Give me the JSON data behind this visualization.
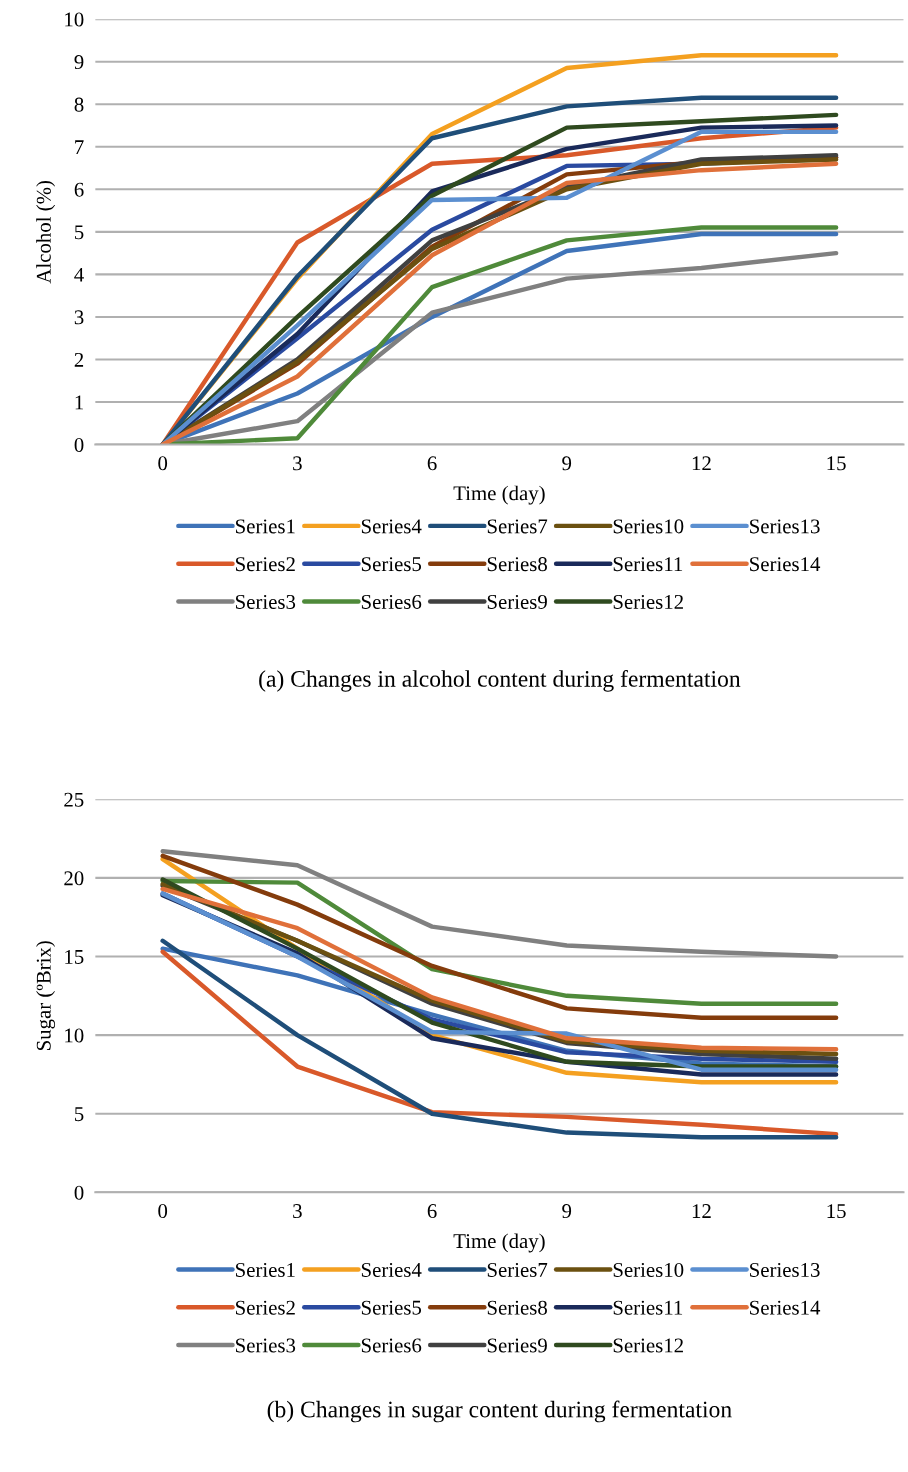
{
  "chart_data": [
    {
      "type": "line",
      "ylabel": "Alcohol (%)",
      "xlabel": "Time (day)",
      "categories": [
        "0",
        "3",
        "6",
        "9",
        "12",
        "15"
      ],
      "ylim": [
        0,
        10
      ],
      "yticks": [
        0,
        1,
        2,
        3,
        4,
        5,
        6,
        7,
        8,
        9,
        10
      ],
      "grid": "y",
      "legend": "bottom",
      "marker": "none",
      "line_style": "solid",
      "annotations": [
        "(a) Changes in alcohol content during fermentation"
      ],
      "series": [
        {
          "name": "Series1",
          "color": "#3f73b8",
          "values": [
            0,
            1.2,
            3.0,
            4.55,
            4.95,
            4.95
          ]
        },
        {
          "name": "Series2",
          "color": "#d9592a",
          "values": [
            0,
            4.75,
            6.6,
            6.8,
            7.2,
            7.45
          ]
        },
        {
          "name": "Series3",
          "color": "#808080",
          "values": [
            0,
            0.55,
            3.1,
            3.9,
            4.15,
            4.5
          ]
        },
        {
          "name": "Series4",
          "color": "#f4a020",
          "values": [
            0,
            3.9,
            7.3,
            8.85,
            9.15,
            9.15
          ]
        },
        {
          "name": "Series5",
          "color": "#2a4aa0",
          "values": [
            0,
            2.5,
            5.05,
            6.55,
            6.6,
            6.75
          ]
        },
        {
          "name": "Series6",
          "color": "#4f8a3a",
          "values": [
            0,
            0.15,
            3.7,
            4.8,
            5.1,
            5.1
          ]
        },
        {
          "name": "Series7",
          "color": "#1f4e79",
          "values": [
            0,
            3.95,
            7.2,
            7.95,
            8.15,
            8.15
          ]
        },
        {
          "name": "Series8",
          "color": "#843c0c",
          "values": [
            0,
            1.9,
            4.65,
            6.35,
            6.65,
            6.75
          ]
        },
        {
          "name": "Series9",
          "color": "#404040",
          "values": [
            0,
            2.0,
            4.8,
            6.05,
            6.7,
            6.8
          ]
        },
        {
          "name": "Series10",
          "color": "#6b5010",
          "values": [
            0,
            1.95,
            4.6,
            6.0,
            6.6,
            6.7
          ]
        },
        {
          "name": "Series11",
          "color": "#1a2a5a",
          "values": [
            0,
            2.6,
            5.95,
            6.95,
            7.45,
            7.5
          ]
        },
        {
          "name": "Series12",
          "color": "#2f4a1f",
          "values": [
            0,
            3.0,
            5.85,
            7.45,
            7.6,
            7.75
          ]
        },
        {
          "name": "Series13",
          "color": "#5b8fd0",
          "values": [
            0,
            2.8,
            5.75,
            5.8,
            7.35,
            7.35
          ]
        },
        {
          "name": "Series14",
          "color": "#e0703a",
          "values": [
            0,
            1.6,
            4.45,
            6.15,
            6.45,
            6.6
          ]
        }
      ]
    },
    {
      "type": "line",
      "ylabel": "Sugar (ºBrix)",
      "xlabel": "Time (day)",
      "categories": [
        "0",
        "3",
        "6",
        "9",
        "12",
        "15"
      ],
      "ylim": [
        0,
        25
      ],
      "yticks": [
        0,
        5,
        10,
        15,
        20,
        25
      ],
      "grid": "y",
      "legend": "bottom",
      "marker": "none",
      "line_style": "solid",
      "annotations": [
        "(b) Changes in sugar content during fermentation"
      ],
      "series": [
        {
          "name": "Series1",
          "color": "#3f73b8",
          "values": [
            15.5,
            13.8,
            11.3,
            9.0,
            8.2,
            8.0
          ]
        },
        {
          "name": "Series2",
          "color": "#d9592a",
          "values": [
            15.3,
            8.0,
            5.1,
            4.8,
            4.3,
            3.7
          ]
        },
        {
          "name": "Series3",
          "color": "#808080",
          "values": [
            21.7,
            20.8,
            16.9,
            15.7,
            15.3,
            15.0
          ]
        },
        {
          "name": "Series4",
          "color": "#f4a020",
          "values": [
            21.2,
            15.5,
            10.0,
            7.6,
            7.0,
            7.0
          ]
        },
        {
          "name": "Series5",
          "color": "#2a4aa0",
          "values": [
            19.0,
            15.0,
            11.0,
            8.9,
            8.5,
            8.3
          ]
        },
        {
          "name": "Series6",
          "color": "#4f8a3a",
          "values": [
            19.8,
            19.7,
            14.2,
            12.5,
            12.0,
            12.0
          ]
        },
        {
          "name": "Series7",
          "color": "#1f4e79",
          "values": [
            16.0,
            10.0,
            5.0,
            3.8,
            3.5,
            3.5
          ]
        },
        {
          "name": "Series8",
          "color": "#843c0c",
          "values": [
            21.4,
            18.3,
            14.4,
            11.7,
            11.1,
            11.1
          ]
        },
        {
          "name": "Series9",
          "color": "#404040",
          "values": [
            19.5,
            16.0,
            12.0,
            9.5,
            8.8,
            8.5
          ]
        },
        {
          "name": "Series10",
          "color": "#6b5010",
          "values": [
            19.6,
            16.0,
            12.2,
            9.6,
            9.0,
            8.8
          ]
        },
        {
          "name": "Series11",
          "color": "#1a2a5a",
          "values": [
            18.9,
            15.2,
            9.8,
            8.3,
            7.5,
            7.5
          ]
        },
        {
          "name": "Series12",
          "color": "#2f4a1f",
          "values": [
            19.9,
            15.5,
            10.8,
            8.3,
            8.0,
            8.0
          ]
        },
        {
          "name": "Series13",
          "color": "#5b8fd0",
          "values": [
            19.0,
            15.0,
            10.2,
            10.1,
            7.8,
            7.8
          ]
        },
        {
          "name": "Series14",
          "color": "#e0703a",
          "values": [
            19.3,
            16.8,
            12.4,
            9.8,
            9.2,
            9.1
          ]
        }
      ]
    }
  ]
}
